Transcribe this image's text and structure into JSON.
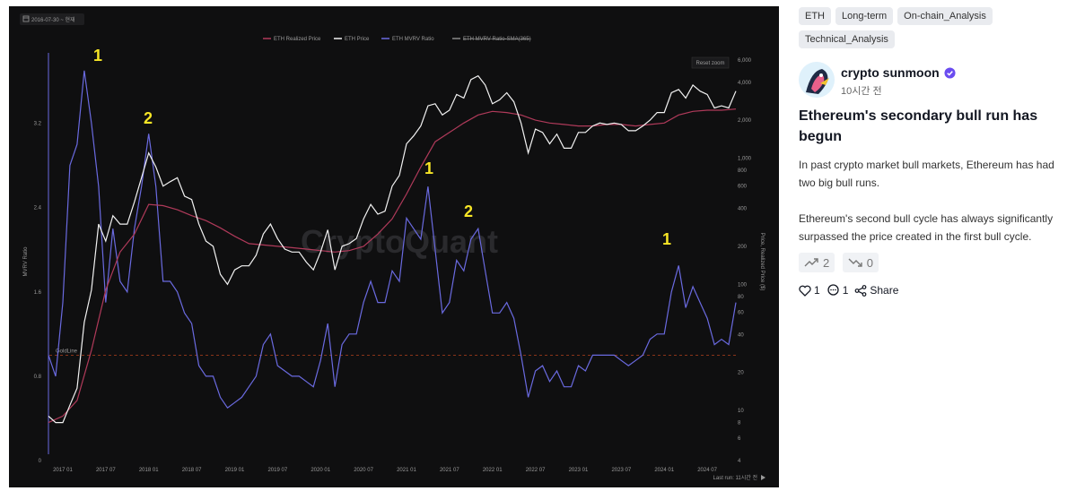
{
  "chart": {
    "date_range": "2016-07-30 ~ 현재",
    "reset_zoom": "Reset zoom",
    "last_run": "Last run: 11시간 전",
    "watermark": "CryptoQuant",
    "goldline_label": "GoldLine",
    "annotations": [
      "1",
      "2",
      "1",
      "2",
      "1"
    ],
    "colors": {
      "background": "#0f0f10",
      "realized_price": "#b03a5a",
      "eth_price": "#f2f2f2",
      "mvrv": "#6a6ae0",
      "sma": "#888888",
      "goldline": "#b4411c",
      "annotation": "#f6e526"
    }
  },
  "chart_data": {
    "type": "line",
    "legend_position": "top-center",
    "legend": [
      "ETH Realized Price",
      "ETH Price",
      "ETH MVRV Ratio",
      "ETH MVRV Ratio-SMA(365)"
    ],
    "left_axis_label": "MVRV Ratio",
    "right_axis_label": "Price, Realized Price ($)",
    "left_ticks": [
      "0",
      "0.8",
      "1.6",
      "2.4",
      "3.2"
    ],
    "right_ticks": [
      "4",
      "6",
      "8",
      "10",
      "20",
      "40",
      "60",
      "80",
      "100",
      "200",
      "400",
      "600",
      "800",
      "1,000",
      "2,000",
      "4,000",
      "6,000"
    ],
    "x_ticks": [
      "2017 01",
      "2017 07",
      "2018 01",
      "2018 07",
      "2019 01",
      "2019 07",
      "2020 01",
      "2020 07",
      "2021 01",
      "2021 07",
      "2022 01",
      "2022 07",
      "2023 01",
      "2023 07",
      "2024 01",
      "2024 07"
    ],
    "left_range": [
      0,
      3.8
    ],
    "right_range": [
      4,
      6000
    ],
    "right_scale": "log",
    "goldline_value": 1.0,
    "series": [
      {
        "name": "ETH Price",
        "x": [
          "2016-11",
          "2016-12",
          "2017-01",
          "2017-02",
          "2017-03",
          "2017-04",
          "2017-05",
          "2017-06",
          "2017-07",
          "2017-08",
          "2017-09",
          "2017-10",
          "2017-11",
          "2017-12",
          "2018-01",
          "2018-02",
          "2018-03",
          "2018-04",
          "2018-05",
          "2018-06",
          "2018-07",
          "2018-08",
          "2018-09",
          "2018-10",
          "2018-11",
          "2018-12",
          "2019-01",
          "2019-02",
          "2019-03",
          "2019-04",
          "2019-05",
          "2019-06",
          "2019-07",
          "2019-08",
          "2019-09",
          "2019-10",
          "2019-11",
          "2019-12",
          "2020-01",
          "2020-02",
          "2020-03",
          "2020-04",
          "2020-05",
          "2020-06",
          "2020-07",
          "2020-08",
          "2020-09",
          "2020-10",
          "2020-11",
          "2020-12",
          "2021-01",
          "2021-02",
          "2021-03",
          "2021-04",
          "2021-05",
          "2021-06",
          "2021-07",
          "2021-08",
          "2021-09",
          "2021-10",
          "2021-11",
          "2021-12",
          "2022-01",
          "2022-02",
          "2022-03",
          "2022-04",
          "2022-05",
          "2022-06",
          "2022-07",
          "2022-08",
          "2022-09",
          "2022-10",
          "2022-11",
          "2022-12",
          "2023-01",
          "2023-02",
          "2023-03",
          "2023-04",
          "2023-05",
          "2023-06",
          "2023-07",
          "2023-08",
          "2023-09",
          "2023-10",
          "2023-11",
          "2023-12",
          "2024-01",
          "2024-02",
          "2024-03",
          "2024-04",
          "2024-05",
          "2024-06",
          "2024-07",
          "2024-08",
          "2024-09",
          "2024-10",
          "2024-11"
        ],
        "values": [
          9,
          8,
          8,
          11,
          15,
          50,
          90,
          300,
          220,
          350,
          300,
          300,
          450,
          700,
          1100,
          850,
          600,
          650,
          700,
          500,
          470,
          300,
          220,
          200,
          120,
          100,
          130,
          140,
          140,
          170,
          250,
          300,
          230,
          190,
          180,
          180,
          150,
          130,
          180,
          270,
          130,
          200,
          210,
          230,
          330,
          430,
          360,
          380,
          600,
          730,
          1300,
          1500,
          1800,
          2600,
          2700,
          2200,
          2400,
          3200,
          3000,
          4200,
          4500,
          3800,
          2700,
          2900,
          3300,
          2800,
          1900,
          1100,
          1700,
          1600,
          1300,
          1550,
          1200,
          1200,
          1600,
          1600,
          1800,
          1900,
          1850,
          1900,
          1850,
          1650,
          1650,
          1800,
          2000,
          2300,
          2300,
          3300,
          3500,
          3000,
          3800,
          3400,
          3200,
          2500,
          2600,
          2500,
          3400
        ]
      },
      {
        "name": "ETH Realized Price",
        "x": [
          "2016-11",
          "2017-01",
          "2017-03",
          "2017-05",
          "2017-07",
          "2017-09",
          "2017-11",
          "2018-01",
          "2018-03",
          "2018-05",
          "2018-07",
          "2018-09",
          "2018-11",
          "2019-01",
          "2019-03",
          "2019-05",
          "2019-07",
          "2019-09",
          "2019-11",
          "2020-01",
          "2020-03",
          "2020-05",
          "2020-07",
          "2020-09",
          "2020-11",
          "2021-01",
          "2021-03",
          "2021-05",
          "2021-07",
          "2021-09",
          "2021-11",
          "2022-01",
          "2022-03",
          "2022-05",
          "2022-07",
          "2022-09",
          "2022-11",
          "2023-01",
          "2023-03",
          "2023-05",
          "2023-07",
          "2023-09",
          "2023-11",
          "2024-01",
          "2024-03",
          "2024-05",
          "2024-07",
          "2024-09",
          "2024-11"
        ],
        "values": [
          8,
          9,
          12,
          30,
          90,
          180,
          250,
          430,
          420,
          390,
          350,
          320,
          280,
          240,
          210,
          205,
          200,
          195,
          190,
          185,
          180,
          185,
          200,
          250,
          330,
          520,
          850,
          1350,
          1600,
          1900,
          2200,
          2350,
          2300,
          2200,
          2000,
          1900,
          1850,
          1800,
          1800,
          1850,
          1850,
          1800,
          1850,
          1900,
          2200,
          2350,
          2400,
          2400,
          2450
        ]
      },
      {
        "name": "ETH MVRV Ratio",
        "x": [
          "2016-11",
          "2016-12",
          "2017-01",
          "2017-02",
          "2017-03",
          "2017-04",
          "2017-05",
          "2017-06",
          "2017-07",
          "2017-08",
          "2017-09",
          "2017-10",
          "2017-11",
          "2017-12",
          "2018-01",
          "2018-02",
          "2018-03",
          "2018-04",
          "2018-05",
          "2018-06",
          "2018-07",
          "2018-08",
          "2018-09",
          "2018-10",
          "2018-11",
          "2018-12",
          "2019-01",
          "2019-02",
          "2019-03",
          "2019-04",
          "2019-05",
          "2019-06",
          "2019-07",
          "2019-08",
          "2019-09",
          "2019-10",
          "2019-11",
          "2019-12",
          "2020-01",
          "2020-02",
          "2020-03",
          "2020-04",
          "2020-05",
          "2020-06",
          "2020-07",
          "2020-08",
          "2020-09",
          "2020-10",
          "2020-11",
          "2020-12",
          "2021-01",
          "2021-02",
          "2021-03",
          "2021-04",
          "2021-05",
          "2021-06",
          "2021-07",
          "2021-08",
          "2021-09",
          "2021-10",
          "2021-11",
          "2021-12",
          "2022-01",
          "2022-02",
          "2022-03",
          "2022-04",
          "2022-05",
          "2022-06",
          "2022-07",
          "2022-08",
          "2022-09",
          "2022-10",
          "2022-11",
          "2022-12",
          "2023-01",
          "2023-02",
          "2023-03",
          "2023-04",
          "2023-05",
          "2023-06",
          "2023-07",
          "2023-08",
          "2023-09",
          "2023-10",
          "2023-11",
          "2023-12",
          "2024-01",
          "2024-02",
          "2024-03",
          "2024-04",
          "2024-05",
          "2024-06",
          "2024-07",
          "2024-08",
          "2024-09",
          "2024-10",
          "2024-11"
        ],
        "values": [
          1.0,
          0.8,
          1.5,
          2.8,
          3.0,
          3.7,
          3.2,
          2.6,
          1.5,
          2.2,
          1.7,
          1.6,
          2.2,
          2.6,
          3.1,
          2.6,
          1.7,
          1.7,
          1.6,
          1.4,
          1.3,
          0.9,
          0.8,
          0.8,
          0.6,
          0.5,
          0.55,
          0.6,
          0.7,
          0.8,
          1.1,
          1.2,
          0.9,
          0.85,
          0.8,
          0.8,
          0.75,
          0.7,
          0.95,
          1.3,
          0.7,
          1.1,
          1.2,
          1.2,
          1.5,
          1.7,
          1.5,
          1.5,
          1.8,
          1.7,
          2.3,
          2.2,
          2.1,
          2.6,
          2.0,
          1.4,
          1.5,
          1.9,
          1.8,
          2.1,
          2.2,
          1.8,
          1.4,
          1.4,
          1.5,
          1.35,
          1.0,
          0.6,
          0.85,
          0.9,
          0.75,
          0.85,
          0.7,
          0.7,
          0.9,
          0.85,
          1.0,
          1.0,
          1.0,
          1.0,
          0.95,
          0.9,
          0.95,
          1.0,
          1.15,
          1.2,
          1.2,
          1.6,
          1.85,
          1.45,
          1.65,
          1.5,
          1.35,
          1.1,
          1.15,
          1.1,
          1.5
        ]
      }
    ]
  },
  "sidebar": {
    "tags": [
      "ETH",
      "Long-term",
      "On-chain_Analysis",
      "Technical_Analysis"
    ],
    "author": "crypto sunmoon",
    "time": "10시간 전",
    "title": "Ethereum's secondary bull run has begun",
    "body": [
      "In past crypto market bull markets, Ethereum has had two big bull runs.",
      "Ethereum's second bull cycle has always significantly surpassed the price created in the first bull cycle."
    ],
    "vote_up": "2",
    "vote_down": "0",
    "likes": "1",
    "comments": "1",
    "share": "Share",
    "verified_color": "#6a4cf0"
  }
}
